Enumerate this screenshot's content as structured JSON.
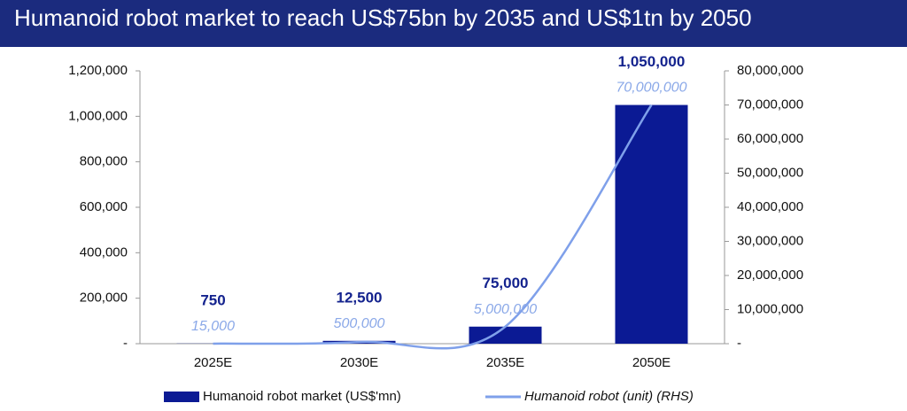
{
  "chart_data": {
    "type": "bar-line",
    "title": "Humanoid robot market to reach US$75bn by 2035 and US$1tn by 2050",
    "categories": [
      "2025E",
      "2030E",
      "2035E",
      "2050E"
    ],
    "series": [
      {
        "name": "Humanoid robot market (US$'mn)",
        "type": "bar",
        "color": "#0b1a94",
        "values": [
          750,
          12500,
          75000,
          1050000
        ],
        "value_labels": [
          "750",
          "12,500",
          "75,000",
          "1,050,000"
        ]
      },
      {
        "name": "Humanoid robot (unit) (RHS)",
        "type": "line",
        "axis": "y2",
        "color": "#7fa0ea",
        "values": [
          15000,
          500000,
          5000000,
          70000000
        ],
        "value_labels": [
          "15,000",
          "500,000",
          "5,000,000",
          "70,000,000"
        ]
      }
    ],
    "ylim": [
      0,
      1200000
    ],
    "yticks": [
      {
        "value": 0,
        "label": "-"
      },
      {
        "value": 200000,
        "label": "200,000"
      },
      {
        "value": 400000,
        "label": "400,000"
      },
      {
        "value": 600000,
        "label": "600,000"
      },
      {
        "value": 800000,
        "label": "800,000"
      },
      {
        "value": 1000000,
        "label": "1,000,000"
      },
      {
        "value": 1200000,
        "label": "1,200,000"
      }
    ],
    "y2lim": [
      0,
      80000000
    ],
    "y2ticks": [
      {
        "value": 0,
        "label": "-"
      },
      {
        "value": 10000000,
        "label": "10,000,000"
      },
      {
        "value": 20000000,
        "label": "20,000,000"
      },
      {
        "value": 30000000,
        "label": "30,000,000"
      },
      {
        "value": 40000000,
        "label": "40,000,000"
      },
      {
        "value": 50000000,
        "label": "50,000,000"
      },
      {
        "value": 60000000,
        "label": "60,000,000"
      },
      {
        "value": 70000000,
        "label": "70,000,000"
      },
      {
        "value": 80000000,
        "label": "80,000,000"
      }
    ],
    "grid": false
  }
}
